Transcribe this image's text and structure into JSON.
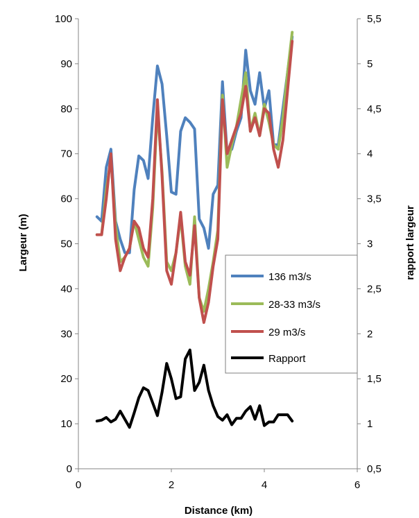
{
  "chart_data": {
    "type": "line",
    "title": "",
    "xlabel": "Distance (km)",
    "ylabel": "Largeur (m)",
    "y2label": "rapport largeur",
    "xlim": [
      0,
      6
    ],
    "ylim": [
      0,
      100
    ],
    "y2lim": [
      0.5,
      5.5
    ],
    "x_ticks": [
      "0",
      "2",
      "4",
      "6"
    ],
    "y_ticks": [
      "0",
      "10",
      "20",
      "30",
      "40",
      "50",
      "60",
      "70",
      "80",
      "90",
      "100"
    ],
    "y2_ticks": [
      "0,5",
      "1",
      "1,5",
      "2",
      "2,5",
      "3",
      "3,5",
      "4",
      "4,5",
      "5",
      "5,5"
    ],
    "grid": "none",
    "legend_position": "center-right",
    "series": [
      {
        "name": "136 m3/s",
        "axis": "left",
        "color": "#4f81bd",
        "x": [
          0.4,
          0.5,
          0.6,
          0.7,
          0.8,
          0.9,
          1.0,
          1.1,
          1.2,
          1.3,
          1.4,
          1.5,
          1.6,
          1.7,
          1.8,
          1.9,
          2.0,
          2.1,
          2.2,
          2.3,
          2.4,
          2.5,
          2.6,
          2.7,
          2.8,
          2.9,
          3.0,
          3.1,
          3.2,
          3.3,
          3.4,
          3.5,
          3.6,
          3.7,
          3.8,
          3.9,
          4.0,
          4.1,
          4.2,
          4.3,
          4.4,
          4.5,
          4.6
        ],
        "y": [
          56,
          55,
          67,
          71,
          55,
          51,
          48,
          48,
          62,
          69.5,
          68.5,
          64.5,
          78,
          89.5,
          85.5,
          74,
          61.5,
          61,
          75,
          78,
          77,
          75.5,
          55.5,
          53.5,
          49,
          61,
          63,
          86,
          70,
          71,
          75,
          78,
          93,
          84,
          81,
          88,
          80,
          84,
          72,
          72,
          80,
          88,
          96
        ]
      },
      {
        "name": "28-33 m3/s",
        "axis": "left",
        "color": "#9bbb59",
        "x": [
          0.4,
          0.5,
          0.6,
          0.7,
          0.8,
          0.9,
          1.0,
          1.1,
          1.2,
          1.3,
          1.4,
          1.5,
          1.6,
          1.7,
          1.8,
          1.9,
          2.0,
          2.1,
          2.2,
          2.3,
          2.4,
          2.5,
          2.6,
          2.7,
          2.8,
          2.9,
          3.0,
          3.1,
          3.2,
          3.3,
          3.4,
          3.5,
          3.6,
          3.7,
          3.8,
          3.9,
          4.0,
          4.1,
          4.2,
          4.3,
          4.4,
          4.5,
          4.6
        ],
        "y": [
          52,
          52,
          62,
          69,
          54,
          46,
          47,
          49,
          55,
          51,
          47,
          45,
          58,
          80,
          66,
          46,
          44,
          48,
          56,
          45,
          41,
          56,
          38,
          35,
          40,
          46,
          53,
          83,
          67,
          72,
          76,
          82,
          88,
          75,
          79,
          74,
          81,
          77,
          72,
          71,
          78,
          88,
          97
        ]
      },
      {
        "name": "29 m3/s",
        "axis": "left",
        "color": "#c0504d",
        "x": [
          0.4,
          0.5,
          0.6,
          0.7,
          0.8,
          0.9,
          1.0,
          1.1,
          1.2,
          1.3,
          1.4,
          1.5,
          1.6,
          1.7,
          1.8,
          1.9,
          2.0,
          2.1,
          2.2,
          2.3,
          2.4,
          2.5,
          2.6,
          2.7,
          2.8,
          2.9,
          3.0,
          3.1,
          3.2,
          3.3,
          3.4,
          3.5,
          3.6,
          3.7,
          3.8,
          3.9,
          4.0,
          4.1,
          4.2,
          4.3,
          4.4,
          4.5,
          4.6
        ],
        "y": [
          52,
          52,
          60,
          70,
          51,
          44,
          47,
          49,
          55,
          53.5,
          49,
          47,
          60,
          82,
          65,
          44,
          41,
          48,
          57,
          46,
          43,
          54,
          38,
          32.5,
          37,
          45,
          51,
          82,
          70,
          73,
          76,
          79,
          85,
          75,
          78,
          74,
          80,
          79,
          71,
          67,
          73,
          84,
          95
        ]
      },
      {
        "name": "Rapport",
        "axis": "right",
        "color": "#000000",
        "x": [
          0.4,
          0.5,
          0.6,
          0.7,
          0.8,
          0.9,
          1.0,
          1.1,
          1.2,
          1.3,
          1.4,
          1.5,
          1.6,
          1.7,
          1.8,
          1.9,
          2.0,
          2.1,
          2.2,
          2.3,
          2.4,
          2.5,
          2.6,
          2.7,
          2.8,
          2.9,
          3.0,
          3.1,
          3.2,
          3.3,
          3.4,
          3.5,
          3.6,
          3.7,
          3.8,
          3.9,
          4.0,
          4.1,
          4.2,
          4.3,
          4.4,
          4.5,
          4.6
        ],
        "y": [
          1.03,
          1.04,
          1.07,
          1.02,
          1.05,
          1.14,
          1.05,
          0.96,
          1.12,
          1.29,
          1.4,
          1.37,
          1.23,
          1.09,
          1.35,
          1.67,
          1.5,
          1.28,
          1.3,
          1.72,
          1.82,
          1.37,
          1.46,
          1.65,
          1.37,
          1.2,
          1.08,
          1.04,
          1.1,
          0.99,
          1.06,
          1.06,
          1.14,
          1.19,
          1.05,
          1.2,
          0.98,
          1.02,
          1.02,
          1.1,
          1.1,
          1.1,
          1.03
        ]
      }
    ]
  }
}
